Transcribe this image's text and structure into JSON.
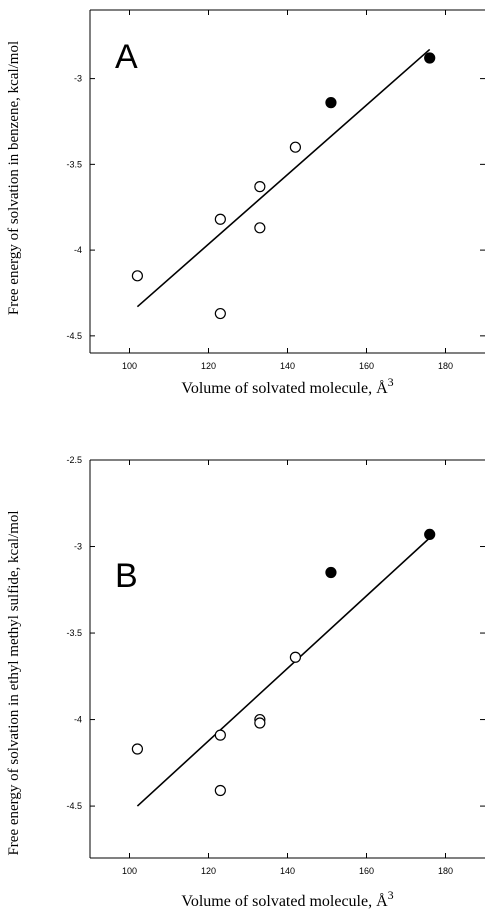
{
  "chart_data": [
    {
      "type": "scatter",
      "panel_label": "A",
      "xlabel": "Volume of solvated molecule, Å",
      "xlabel_sup": "3",
      "ylabel": "Free energy of solvation in benzene, kcal/mol",
      "xlim": [
        90,
        190
      ],
      "ylim": [
        -4.6,
        -2.6
      ],
      "xticks": [
        100,
        120,
        140,
        160,
        180
      ],
      "yticks": [
        -4.5,
        -4,
        -3.5,
        -3
      ],
      "xtick_labels": [
        "100",
        "120",
        "140",
        "160",
        "180"
      ],
      "ytick_labels": [
        "-4.5",
        "-4",
        "-3.5",
        "-3"
      ],
      "grid": false,
      "series": [
        {
          "marker": "open-circle",
          "x": [
            102,
            123,
            123,
            133,
            133,
            142
          ],
          "y": [
            -4.15,
            -3.82,
            -4.37,
            -3.63,
            -3.87,
            -3.4
          ]
        },
        {
          "marker": "filled-circle",
          "x": [
            151,
            176
          ],
          "y": [
            -3.14,
            -2.88
          ]
        }
      ],
      "fit_line": {
        "x": [
          102,
          176
        ],
        "y": [
          -4.33,
          -2.83
        ]
      }
    },
    {
      "type": "scatter",
      "panel_label": "B",
      "xlabel": "Volume of solvated molecule, Å",
      "xlabel_sup": "3",
      "ylabel": "Free energy of solvation in ethyl methyl sulfide, kcal/mol",
      "xlim": [
        90,
        190
      ],
      "ylim": [
        -4.8,
        -2.5
      ],
      "xticks": [
        100,
        120,
        140,
        160,
        180
      ],
      "yticks": [
        -4.5,
        -4,
        -3.5,
        -3,
        -2.5
      ],
      "xtick_labels": [
        "100",
        "120",
        "140",
        "160",
        "180"
      ],
      "ytick_labels": [
        "-4.5",
        "-4",
        "-3.5",
        "-3",
        "-2.5"
      ],
      "grid": false,
      "series": [
        {
          "marker": "open-circle",
          "x": [
            102,
            123,
            123,
            133,
            133,
            142
          ],
          "y": [
            -4.17,
            -4.09,
            -4.41,
            -4.0,
            -4.02,
            -3.64
          ]
        },
        {
          "marker": "filled-circle",
          "x": [
            151,
            176
          ],
          "y": [
            -3.15,
            -2.93
          ]
        }
      ],
      "fit_line": {
        "x": [
          102,
          176
        ],
        "y": [
          -4.5,
          -2.95
        ]
      }
    }
  ]
}
